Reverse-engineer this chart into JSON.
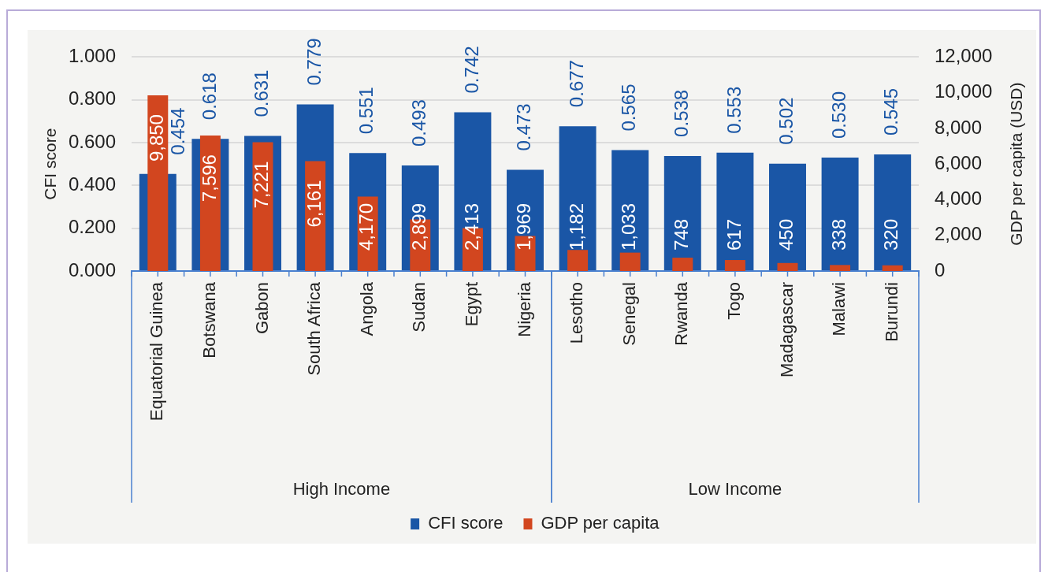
{
  "chart_data": {
    "type": "bar",
    "categories": [
      "Equatorial Guinea",
      "Botswana",
      "Gabon",
      "South Africa",
      "Angola",
      "Sudan",
      "Egypt",
      "Nigeria",
      "Lesotho",
      "Senegal",
      "Rwanda",
      "Togo",
      "Madagascar",
      "Malawi",
      "Burundi"
    ],
    "series": [
      {
        "name": "CFI score",
        "color": "#1a56a6",
        "values": [
          0.454,
          0.618,
          0.631,
          0.779,
          0.551,
          0.493,
          0.742,
          0.473,
          0.677,
          0.565,
          0.538,
          0.553,
          0.502,
          0.53,
          0.545
        ],
        "value_labels": [
          "0.454",
          "0.618",
          "0.631",
          "0.779",
          "0.551",
          "0.493",
          "0.742",
          "0.473",
          "0.677",
          "0.565",
          "0.538",
          "0.553",
          "0.502",
          "0.530",
          "0.545"
        ]
      },
      {
        "name": "GDP per capita",
        "color": "#d2461f",
        "axis": "y2",
        "values": [
          9850,
          7596,
          7221,
          6161,
          4170,
          2899,
          2413,
          1969,
          1182,
          1033,
          748,
          617,
          450,
          338,
          320
        ],
        "value_labels": [
          "9,850",
          "7,596",
          "7,221",
          "6,161",
          "4,170",
          "2,899",
          "2,413",
          "1,969",
          "1,182",
          "1,033",
          "748",
          "617",
          "450",
          "338",
          "320"
        ]
      }
    ],
    "ylabel": "CFI score",
    "y2label": "GDP per capita (USD)",
    "ylim": [
      0,
      1
    ],
    "yticks": [
      {
        "value": 0,
        "label": "0.000"
      },
      {
        "value": 0.2,
        "label": "0.200"
      },
      {
        "value": 0.4,
        "label": "0.400"
      },
      {
        "value": 0.6,
        "label": "0.600"
      },
      {
        "value": 0.8,
        "label": "0.800"
      },
      {
        "value": 1,
        "label": "1.000"
      }
    ],
    "y2lim": [
      0,
      12000
    ],
    "y2ticks": [
      0,
      {
        "value": 2000,
        "label": "2,000"
      },
      {
        "value": 4000,
        "label": "4,000"
      },
      {
        "value": 6000,
        "label": "6,000"
      },
      {
        "value": 8000,
        "label": "8,000"
      },
      {
        "value": 10000,
        "label": "10,000"
      },
      {
        "value": 12000,
        "label": "12,000"
      }
    ],
    "annotations": [
      "High Income",
      "Low Income"
    ],
    "grid": "y",
    "legend": "bottom"
  }
}
